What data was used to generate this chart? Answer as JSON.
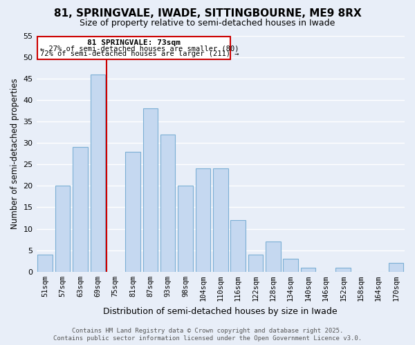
{
  "title": "81, SPRINGVALE, IWADE, SITTINGBOURNE, ME9 8RX",
  "subtitle": "Size of property relative to semi-detached houses in Iwade",
  "xlabel": "Distribution of semi-detached houses by size in Iwade",
  "ylabel": "Number of semi-detached properties",
  "bar_labels": [
    "51sqm",
    "57sqm",
    "63sqm",
    "69sqm",
    "75sqm",
    "81sqm",
    "87sqm",
    "93sqm",
    "98sqm",
    "104sqm",
    "110sqm",
    "116sqm",
    "122sqm",
    "128sqm",
    "134sqm",
    "140sqm",
    "146sqm",
    "152sqm",
    "158sqm",
    "164sqm",
    "170sqm"
  ],
  "bar_values": [
    4,
    20,
    29,
    46,
    0,
    28,
    38,
    32,
    20,
    24,
    24,
    12,
    4,
    7,
    3,
    1,
    0,
    1,
    0,
    0,
    2
  ],
  "bar_color": "#c5d8f0",
  "bar_edge_color": "#7bafd4",
  "vline_pos": 3.5,
  "vline_color": "#cc0000",
  "annotation_title": "81 SPRINGVALE: 73sqm",
  "annotation_line1": "← 27% of semi-detached houses are smaller (80)",
  "annotation_line2": "72% of semi-detached houses are larger (211) →",
  "annotation_box_color": "#ffffff",
  "annotation_box_edge": "#cc0000",
  "ylim": [
    0,
    55
  ],
  "yticks": [
    0,
    5,
    10,
    15,
    20,
    25,
    30,
    35,
    40,
    45,
    50,
    55
  ],
  "background_color": "#e8eef8",
  "grid_color": "#ffffff",
  "footer_line1": "Contains HM Land Registry data © Crown copyright and database right 2025.",
  "footer_line2": "Contains public sector information licensed under the Open Government Licence v3.0."
}
